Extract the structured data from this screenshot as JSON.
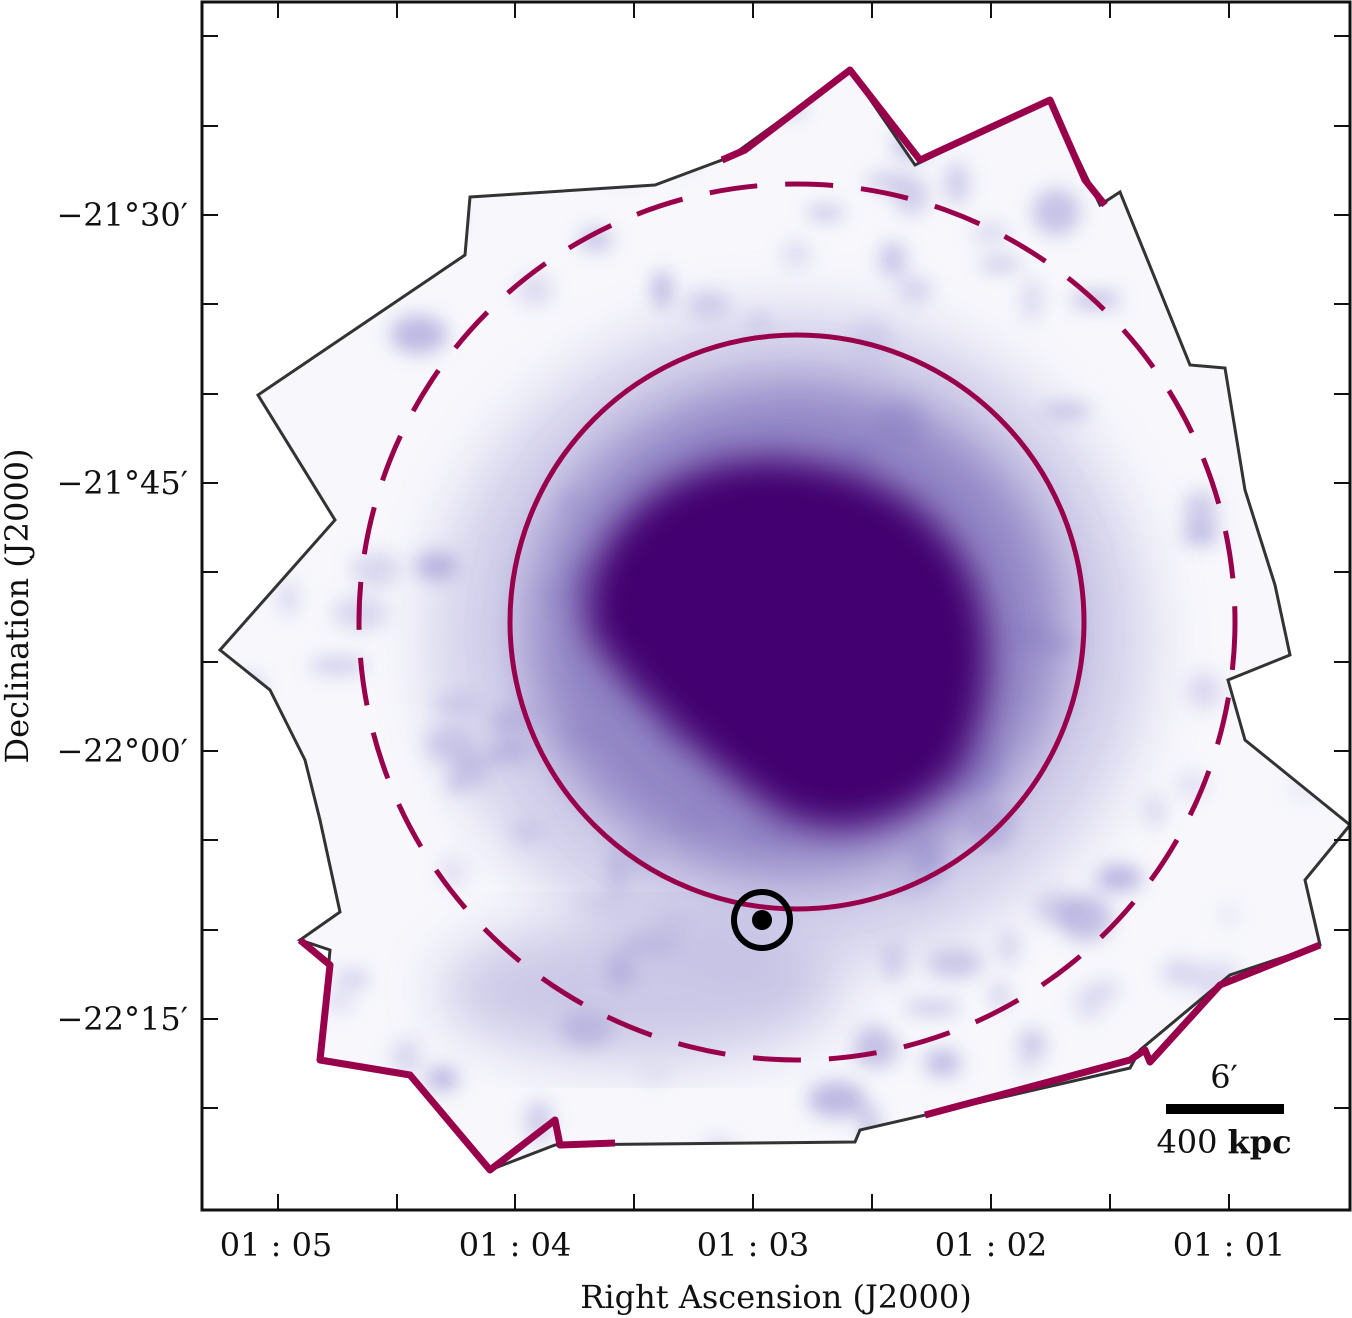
{
  "figure": {
    "xlabel": "Right Ascension (J2000)",
    "ylabel": "Declination (J2000)",
    "x_ticks": [
      "01 : 05",
      "01 : 04",
      "01 : 03",
      "01 : 02",
      "01 : 01"
    ],
    "y_ticks": [
      "−21°30′",
      "−21°45′",
      "−22°00′",
      "−22°15′"
    ],
    "scale_bar": {
      "angle_label": "6′",
      "distance_number": "400",
      "distance_unit": "kpc"
    }
  },
  "colors": {
    "emission_core": "#43036f",
    "emission_mid": "#6e5aa8",
    "emission_faint": "#c9c6e6",
    "region_outline": "#99004c",
    "footprint_edge": "#333333",
    "marker": "#000000"
  },
  "chart_data": {
    "type": "image",
    "title": "",
    "xlabel": "Right Ascension (J2000)",
    "ylabel": "Declination (J2000)",
    "x_tick_labels": [
      "01 : 05",
      "01 : 04",
      "01 : 03",
      "01 : 02",
      "01 : 01"
    ],
    "y_tick_labels": [
      "−21°30′",
      "−21°45′",
      "−22°00′",
      "−22°15′"
    ],
    "annotations": [
      "6′",
      "400 kpc"
    ]
  }
}
